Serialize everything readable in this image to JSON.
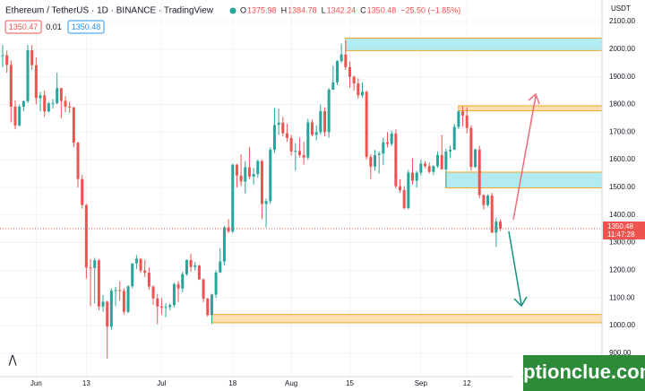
{
  "chart_data": {
    "type": "candlestick",
    "title": "Ethereum / TetherUS · 1D · BINANCE · TradingView",
    "ohlc_prefixes": [
      "O",
      "H",
      "L",
      "C"
    ],
    "change": "−25.50 (−1.85%)",
    "sell_price": "1350.47",
    "spread": "0.01",
    "buy_price": "1350.48",
    "currency": "USDT",
    "last_price": "1350.48",
    "countdown": "11:47:28",
    "watermark": "optionclue.com",
    "up_color": "#26a69a",
    "down_color": "#ef5350",
    "grid": true,
    "xlim": [
      -0.64,
      143.3
    ],
    "ylim": [
      815,
      2178
    ],
    "xticks": [
      {
        "value": 8,
        "label": "Jun"
      },
      {
        "value": 20,
        "label": "13"
      },
      {
        "value": 38,
        "label": "Jul"
      },
      {
        "value": 55,
        "label": "18"
      },
      {
        "value": 69,
        "label": "Aug"
      },
      {
        "value": 83,
        "label": "15"
      },
      {
        "value": 100,
        "label": "Sep"
      },
      {
        "value": 111,
        "label": "12"
      }
    ],
    "yticks": [
      {
        "value": 900,
        "label": "900.00"
      },
      {
        "value": 1000,
        "label": "1000.00"
      },
      {
        "value": 1100,
        "label": "1100.00"
      },
      {
        "value": 1200,
        "label": "1200.00"
      },
      {
        "value": 1300,
        "label": "1300.00"
      },
      {
        "value": 1400,
        "label": "1400.00"
      },
      {
        "value": 1500,
        "label": "1500.00"
      },
      {
        "value": 1600,
        "label": "1600.00"
      },
      {
        "value": 1700,
        "label": "1700.00"
      },
      {
        "value": 1800,
        "label": "1800.00"
      },
      {
        "value": 1900,
        "label": "1900.00"
      },
      {
        "value": 2000,
        "label": "2000.00"
      },
      {
        "value": 2100,
        "label": "2100.00"
      }
    ],
    "zones": [
      {
        "low": 1995,
        "high": 2040,
        "start": 82,
        "color": "#b2ebf2",
        "edge": "#f5a623"
      },
      {
        "low": 1777,
        "high": 1795,
        "start": 109,
        "color": "#ffe0b2",
        "edge": "#f5a623"
      },
      {
        "low": 1498,
        "high": 1555,
        "start": 106,
        "color": "#b2ebf2",
        "edge": "#f5a623"
      },
      {
        "low": 1010,
        "high": 1040,
        "start": 50,
        "color": "#ffe0b2",
        "edge": "#f5a623"
      }
    ],
    "opens": [
      1975,
      1978,
      1943,
      1792,
      1724,
      1792,
      1812,
      1996,
      1942,
      1823,
      1833,
      1775,
      1804,
      1805,
      1859,
      1813,
      1792,
      1789,
      1662,
      1530,
      1436,
      1210,
      1208,
      1236,
      1069,
      1086,
      996,
      1126,
      1128,
      1125,
      1050,
      1142,
      1225,
      1242,
      1199,
      1191,
      1141,
      1098,
      1069,
      1065,
      1067,
      1074,
      1150,
      1134,
      1186,
      1237,
      1212,
      1217,
      1167,
      1097,
      1038,
      1112,
      1192,
      1232,
      1355,
      1340,
      1582,
      1543,
      1521,
      1573,
      1539,
      1548,
      1595,
      1440,
      1450,
      1636,
      1726,
      1734,
      1696,
      1679,
      1630,
      1632,
      1617,
      1608,
      1735,
      1690,
      1700,
      1776,
      1700,
      1853,
      1880,
      1957,
      1981,
      1935,
      1900,
      1876,
      1833,
      1846,
      1610,
      1575,
      1617,
      1622,
      1663,
      1657,
      1695,
      1504,
      1490,
      1425,
      1553,
      1524,
      1553,
      1586,
      1577,
      1556,
      1577,
      1617,
      1565,
      1630,
      1636,
      1719,
      1775,
      1760,
      1715,
      1574,
      1637,
      1472,
      1436,
      1470,
      1336,
      1375.98
    ],
    "highs": [
      2015,
      1995,
      1960,
      1815,
      1800,
      1815,
      2015,
      2015,
      1970,
      1845,
      1850,
      1810,
      1820,
      1915,
      1860,
      1830,
      1810,
      1792,
      1665,
      1545,
      1440,
      1240,
      1245,
      1240,
      1110,
      1090,
      1135,
      1140,
      1160,
      1135,
      1145,
      1225,
      1255,
      1240,
      1238,
      1210,
      1145,
      1115,
      1100,
      1080,
      1080,
      1155,
      1160,
      1195,
      1240,
      1260,
      1230,
      1220,
      1170,
      1100,
      1115,
      1200,
      1280,
      1360,
      1385,
      1585,
      1585,
      1620,
      1595,
      1645,
      1570,
      1600,
      1600,
      1460,
      1645,
      1787,
      1785,
      1755,
      1730,
      1690,
      1660,
      1680,
      1665,
      1748,
      1745,
      1725,
      1800,
      1790,
      1860,
      1940,
      1960,
      2020,
      2030,
      1955,
      1905,
      1895,
      1880,
      1850,
      1620,
      1635,
      1630,
      1680,
      1700,
      1705,
      1710,
      1530,
      1505,
      1563,
      1605,
      1560,
      1600,
      1595,
      1590,
      1580,
      1630,
      1690,
      1640,
      1650,
      1730,
      1780,
      1795,
      1790,
      1725,
      1640,
      1650,
      1475,
      1475,
      1480,
      1390,
      1384.78
    ],
    "lows": [
      1935,
      1915,
      1735,
      1710,
      1720,
      1775,
      1805,
      1925,
      1800,
      1775,
      1755,
      1770,
      1785,
      1800,
      1750,
      1772,
      1770,
      1645,
      1500,
      1423,
      1170,
      1070,
      1080,
      1055,
      1050,
      880,
      985,
      1070,
      1090,
      1040,
      1045,
      1135,
      1205,
      1190,
      1175,
      1130,
      1075,
      1005,
      1040,
      1030,
      1055,
      1065,
      1085,
      1120,
      1180,
      1195,
      1200,
      1165,
      1085,
      1032,
      1005,
      1100,
      1190,
      1218,
      1335,
      1335,
      1500,
      1505,
      1478,
      1530,
      1510,
      1535,
      1385,
      1355,
      1440,
      1625,
      1690,
      1685,
      1665,
      1615,
      1560,
      1608,
      1582,
      1600,
      1685,
      1670,
      1690,
      1685,
      1680,
      1855,
      1870,
      1950,
      1925,
      1860,
      1850,
      1820,
      1825,
      1600,
      1530,
      1560,
      1550,
      1580,
      1645,
      1650,
      1495,
      1480,
      1420,
      1420,
      1510,
      1500,
      1543,
      1570,
      1550,
      1545,
      1570,
      1565,
      1500,
      1605,
      1635,
      1710,
      1720,
      1695,
      1560,
      1570,
      1460,
      1420,
      1430,
      1335,
      1285,
      1342.24
    ],
    "closes": [
      1978,
      1943,
      1792,
      1724,
      1792,
      1812,
      1996,
      1942,
      1823,
      1833,
      1775,
      1804,
      1805,
      1859,
      1813,
      1792,
      1789,
      1662,
      1530,
      1436,
      1210,
      1208,
      1236,
      1069,
      1086,
      996,
      1126,
      1128,
      1125,
      1050,
      1142,
      1225,
      1242,
      1199,
      1191,
      1141,
      1098,
      1069,
      1065,
      1067,
      1074,
      1150,
      1134,
      1186,
      1237,
      1212,
      1217,
      1167,
      1097,
      1038,
      1112,
      1192,
      1232,
      1355,
      1340,
      1582,
      1543,
      1521,
      1573,
      1539,
      1548,
      1595,
      1440,
      1450,
      1636,
      1726,
      1734,
      1696,
      1679,
      1630,
      1632,
      1617,
      1608,
      1735,
      1690,
      1700,
      1776,
      1700,
      1853,
      1880,
      1957,
      1981,
      1935,
      1900,
      1876,
      1833,
      1846,
      1610,
      1575,
      1617,
      1622,
      1663,
      1657,
      1695,
      1504,
      1490,
      1425,
      1553,
      1524,
      1553,
      1586,
      1577,
      1556,
      1577,
      1617,
      1565,
      1630,
      1636,
      1719,
      1775,
      1760,
      1715,
      1574,
      1637,
      1472,
      1436,
      1470,
      1336,
      1376,
      1350.48
    ]
  }
}
